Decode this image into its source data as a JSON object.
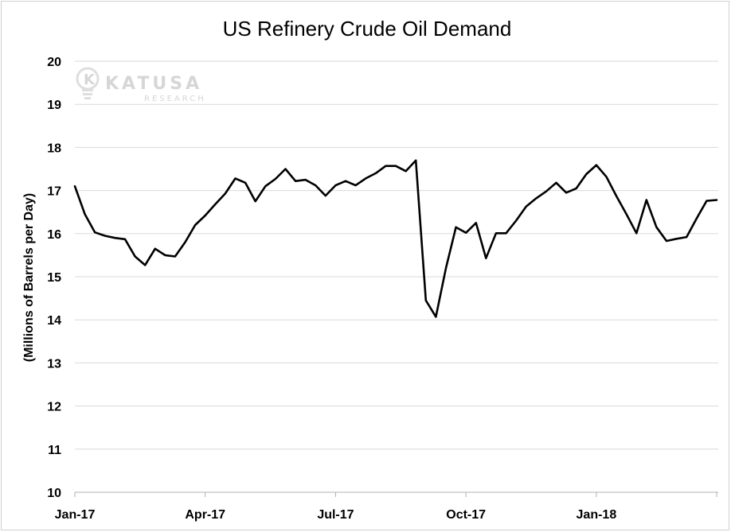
{
  "chart_data": {
    "type": "line",
    "title": "US Refinery Crude Oil Demand",
    "ylabel": "(Millions of Barrels per Day)",
    "xlabel": "",
    "ylim": [
      10,
      20
    ],
    "yticks": [
      10,
      11,
      12,
      13,
      14,
      15,
      16,
      17,
      18,
      19,
      20
    ],
    "xtick_labels": [
      "Jan-17",
      "Apr-17",
      "Jul-17",
      "Oct-17",
      "Jan-18"
    ],
    "grid": true,
    "legend": "none",
    "series": [
      {
        "color": "#000000",
        "values": [
          17.1,
          16.45,
          16.03,
          15.95,
          15.9,
          15.87,
          15.47,
          15.27,
          15.65,
          15.5,
          15.47,
          15.8,
          16.2,
          16.42,
          16.68,
          16.93,
          17.28,
          17.18,
          16.75,
          17.1,
          17.27,
          17.5,
          17.22,
          17.25,
          17.12,
          16.88,
          17.12,
          17.22,
          17.12,
          17.28,
          17.4,
          17.57,
          17.57,
          17.45,
          17.7,
          14.45,
          14.07,
          15.2,
          16.15,
          16.02,
          16.25,
          15.43,
          16.01,
          16.01,
          16.3,
          16.63,
          16.82,
          16.98,
          17.18,
          16.95,
          17.05,
          17.38,
          17.59,
          17.32,
          16.87,
          16.45,
          16.01,
          16.78,
          16.15,
          15.83,
          15.88,
          15.92,
          16.35,
          16.76,
          16.78
        ]
      }
    ]
  },
  "watermark": {
    "brand": "KATUSA",
    "sub": "RESEARCH",
    "icon": "lightbulb-k-icon"
  }
}
